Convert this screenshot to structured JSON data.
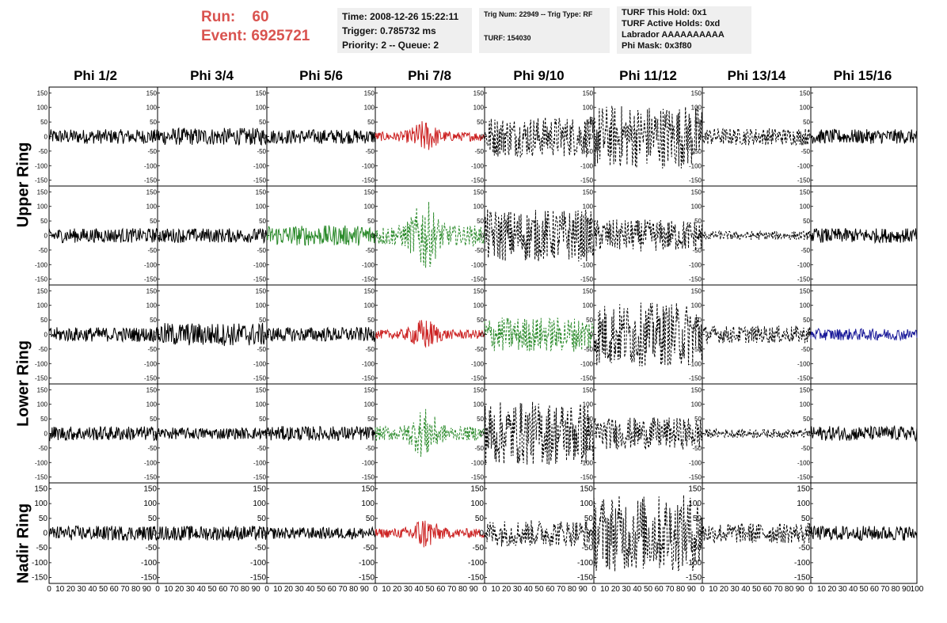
{
  "header": {
    "run_label": "Run:",
    "run_value": "60",
    "event_label": "Event:",
    "event_value": "6925721"
  },
  "info_boxes": [
    {
      "lines": [
        "Time: 2008-12-26 15:22:11",
        "Trigger: 0.785732 ms",
        "Priority: 2 -- Queue: 2"
      ]
    },
    {
      "lines": [
        "Trig Num: 22949 -- Trig Type: RF",
        "",
        "TURF: 154030"
      ]
    },
    {
      "lines": [
        "TURF This Hold: 0x1",
        "TURF Active Holds: 0xd",
        "Labrador AAAAAAAAAA",
        "Phi Mask: 0x3f80"
      ]
    }
  ],
  "columns": [
    "Phi 1/2",
    "Phi 3/4",
    "Phi 5/6",
    "Phi 7/8",
    "Phi 9/10",
    "Phi 11/12",
    "Phi 13/14",
    "Phi 15/16"
  ],
  "row_groups": [
    "Upper Ring",
    "Lower Ring",
    "Nadir Ring"
  ],
  "colors": {
    "black": "#000000",
    "red": "#cc2222",
    "green": "#2a8a2a",
    "blue": "#1a1a99",
    "info_bg": "#efefef",
    "run_text": "#d9534f"
  },
  "chart_data": {
    "type": "line",
    "title": "",
    "xlabel": "",
    "ylabel": "",
    "xlim": [
      0,
      100
    ],
    "ylim": [
      -170,
      170
    ],
    "y_ticks": [
      -150,
      -100,
      -50,
      0,
      50,
      100,
      150
    ],
    "x_ticks": [
      0,
      10,
      20,
      30,
      40,
      50,
      60,
      70,
      80,
      90,
      100
    ],
    "panels_rows": 5,
    "panels_cols": 8,
    "note_values": "waveform voltages per panel: [peak amplitude, style, color]",
    "panels": [
      [
        [
          25,
          "solid",
          "black"
        ],
        [
          30,
          "solid",
          "black"
        ],
        [
          25,
          "solid",
          "black"
        ],
        [
          45,
          "solid",
          "red"
        ],
        [
          70,
          "dashed",
          "black"
        ],
        [
          110,
          "dashed",
          "black"
        ],
        [
          30,
          "dashed",
          "black"
        ],
        [
          25,
          "solid",
          "black"
        ]
      ],
      [
        [
          25,
          "solid",
          "black"
        ],
        [
          25,
          "solid",
          "black"
        ],
        [
          35,
          "solid",
          "green"
        ],
        [
          100,
          "dashed",
          "green"
        ],
        [
          90,
          "dashed",
          "black"
        ],
        [
          55,
          "dashed",
          "black"
        ],
        [
          15,
          "dashed",
          "black"
        ],
        [
          25,
          "solid",
          "black"
        ]
      ],
      [
        [
          25,
          "solid",
          "black"
        ],
        [
          40,
          "solid",
          "black"
        ],
        [
          25,
          "solid",
          "black"
        ],
        [
          45,
          "solid",
          "red"
        ],
        [
          60,
          "dashed",
          "green"
        ],
        [
          110,
          "dashed",
          "black"
        ],
        [
          30,
          "dashed",
          "black"
        ],
        [
          20,
          "solid",
          "blue"
        ]
      ],
      [
        [
          25,
          "solid",
          "black"
        ],
        [
          20,
          "solid",
          "black"
        ],
        [
          25,
          "solid",
          "black"
        ],
        [
          70,
          "dashed",
          "green"
        ],
        [
          110,
          "dashed",
          "black"
        ],
        [
          55,
          "dashed",
          "black"
        ],
        [
          15,
          "dashed",
          "black"
        ],
        [
          25,
          "solid",
          "black"
        ]
      ],
      [
        [
          25,
          "solid",
          "black"
        ],
        [
          25,
          "solid",
          "black"
        ],
        [
          20,
          "solid",
          "black"
        ],
        [
          45,
          "solid",
          "red"
        ],
        [
          45,
          "dashed",
          "black"
        ],
        [
          130,
          "dashed",
          "black"
        ],
        [
          35,
          "dashed",
          "black"
        ],
        [
          25,
          "solid",
          "black"
        ]
      ]
    ]
  }
}
